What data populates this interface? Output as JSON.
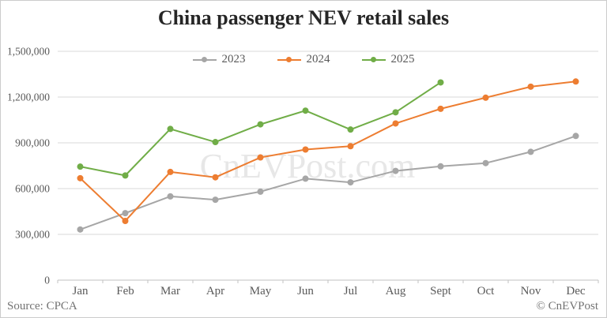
{
  "title": "China passenger NEV retail sales",
  "source": "Source: CPCA",
  "copyright": "© CnEVPost",
  "watermark": "CnEVPost.com",
  "colors": {
    "grid": "#d9d9d9",
    "axis_line": "#c2c2c2",
    "axis_text": "#595959",
    "title_text": "#262626",
    "watermark": "#e7e7e7",
    "footer_text": "#737373"
  },
  "chart_data": {
    "type": "line",
    "title": "China passenger NEV retail sales",
    "categories": [
      "Jan",
      "Feb",
      "Mar",
      "Apr",
      "May",
      "Jun",
      "Jul",
      "Aug",
      "Sept",
      "Oct",
      "Nov",
      "Dec"
    ],
    "xlabel": "",
    "ylabel": "",
    "ylim": [
      0,
      1500000
    ],
    "y_ticks": [
      0,
      300000,
      600000,
      900000,
      1200000,
      1500000
    ],
    "y_tick_labels": [
      "0",
      "300,000",
      "600,000",
      "900,000",
      "1,200,000",
      "1,500,000"
    ],
    "grid": true,
    "legend_position": "top-center",
    "marker": "circle",
    "series": [
      {
        "name": "2023",
        "color": "#a6a6a6",
        "values": [
          332000,
          439000,
          549000,
          527000,
          580000,
          665000,
          641000,
          716000,
          746000,
          767000,
          841000,
          945000
        ]
      },
      {
        "name": "2024",
        "color": "#ed7d31",
        "values": [
          668000,
          388000,
          709000,
          674000,
          804000,
          856000,
          878000,
          1027000,
          1123000,
          1196000,
          1268000,
          1302000
        ]
      },
      {
        "name": "2025",
        "color": "#70ad47",
        "values": [
          744000,
          686000,
          991000,
          905000,
          1021000,
          1111000,
          987000,
          1100000,
          1296000
        ]
      }
    ]
  }
}
